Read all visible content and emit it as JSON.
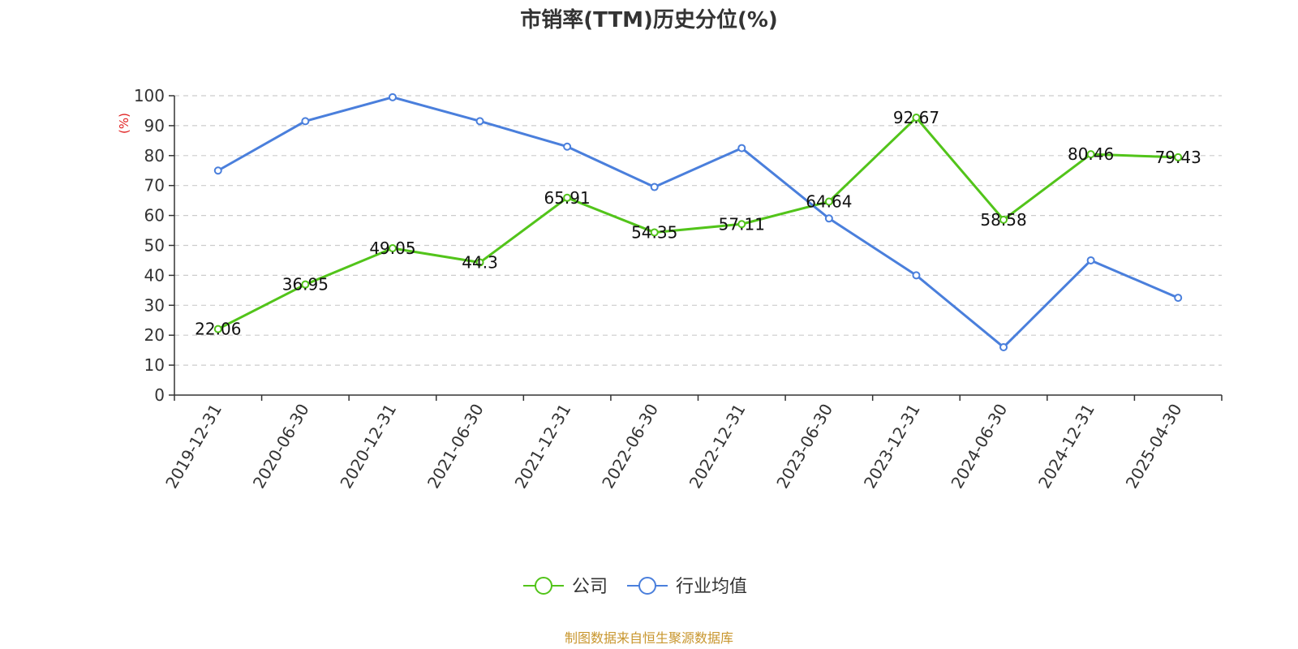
{
  "chart_data": {
    "type": "line",
    "title": "市销率(TTM)历史分位(%)",
    "ylabel": "(%)",
    "ylim": [
      0,
      100
    ],
    "yticks": [
      0,
      10,
      20,
      30,
      40,
      50,
      60,
      70,
      80,
      90,
      100
    ],
    "categories": [
      "2019-12-31",
      "2020-06-30",
      "2020-12-31",
      "2021-06-30",
      "2021-12-31",
      "2022-06-30",
      "2022-12-31",
      "2023-06-30",
      "2023-12-31",
      "2024-06-30",
      "2024-12-31",
      "2025-04-30"
    ],
    "series": [
      {
        "name": "公司",
        "color": "#52c41a",
        "values": [
          22.06,
          36.95,
          49.05,
          44.3,
          65.91,
          54.35,
          57.11,
          64.64,
          92.67,
          58.58,
          80.46,
          79.43
        ],
        "labels": [
          "22.06",
          "36.95",
          "49.05",
          "44.3",
          "65.91",
          "54.35",
          "57.11",
          "64.64",
          "92.67",
          "58.58",
          "80.46",
          "79.43"
        ]
      },
      {
        "name": "行业均值",
        "color": "#4a7fdc",
        "values": [
          75,
          91.5,
          99.5,
          91.5,
          83,
          69.5,
          82.5,
          59,
          40,
          16,
          45,
          32.5
        ]
      }
    ],
    "grid": true,
    "legend_position": "bottom-center",
    "source": "制图数据来自恒生聚源数据库",
    "source_color": "#c8962e",
    "ylabel_color": "#e02020",
    "axis_color": "#333333",
    "grid_color": "#cccccc"
  }
}
